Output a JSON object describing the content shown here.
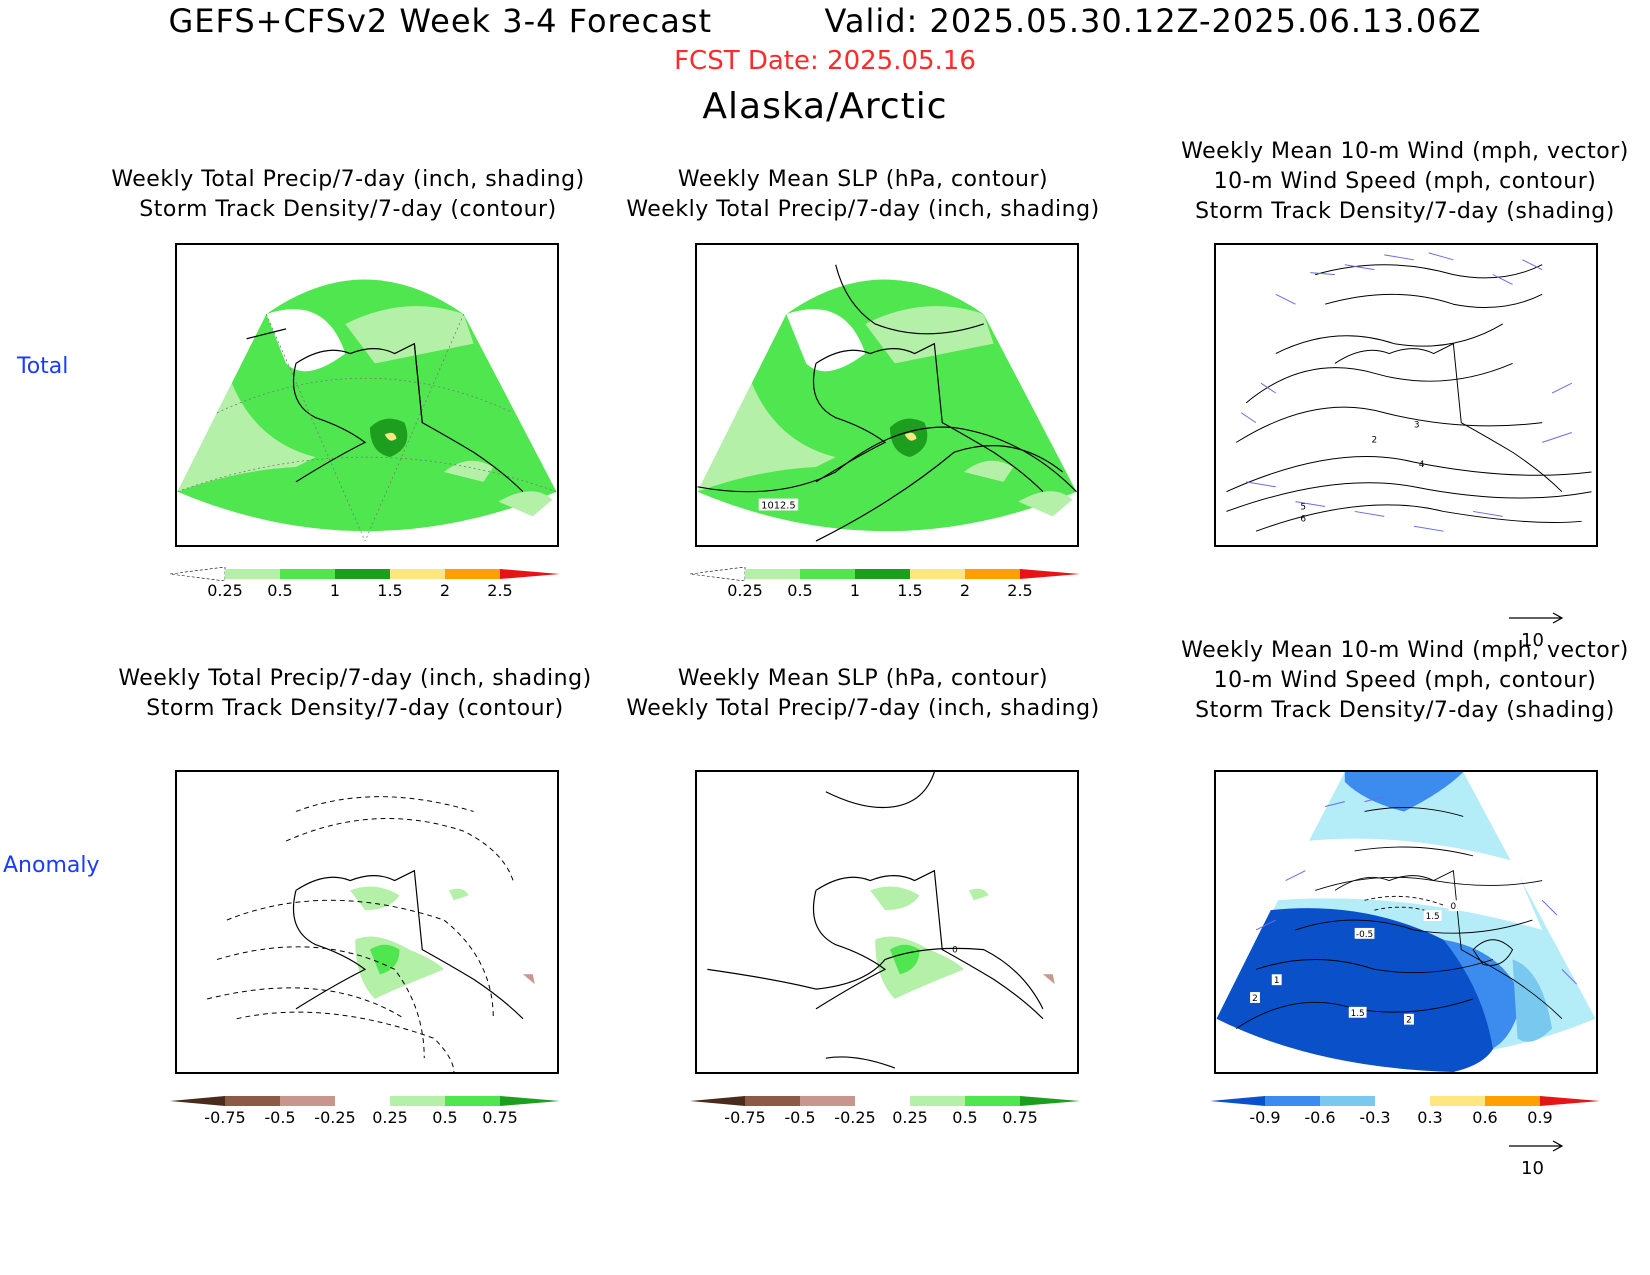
{
  "header": {
    "title": "GEFS+CFSv2 Week 3-4 Forecast",
    "valid": "Valid: 2025.05.30.12Z-2025.06.13.06Z",
    "fcst_date": "FCST Date: 2025.05.16",
    "region": "Alaska/Arctic"
  },
  "rows": {
    "total": "Total",
    "anomaly": "Anomaly"
  },
  "panels": {
    "col1": {
      "line1": "Weekly Total Precip/7-day (inch, shading)",
      "line2": "Storm Track Density/7-day (contour)"
    },
    "col2": {
      "line1": "Weekly Mean SLP (hPa, contour)",
      "line2": "Weekly Total Precip/7-day (inch, shading)"
    },
    "col3": {
      "line1": "Weekly Mean 10-m Wind (mph, vector)",
      "line2": "10-m Wind Speed (mph, contour)",
      "line3": "Storm Track Density/7-day (shading)"
    }
  },
  "map_labels": {
    "slp_total": "1012.5",
    "slp_anom": "0",
    "wind_total": [
      "2",
      "3",
      "4",
      "5",
      "6"
    ],
    "wind_anom": [
      "1",
      "2",
      "1.5",
      "2",
      "-0.5",
      "0",
      "1.5"
    ]
  },
  "colorbars": {
    "total_precip": {
      "ticks": [
        "0.25",
        "0.5",
        "1",
        "1.5",
        "2",
        "2.5"
      ],
      "colors": [
        "#ffffff",
        "#b4f0a8",
        "#50e650",
        "#1e9e1e",
        "#ffe680",
        "#ffa000",
        "#e61414"
      ]
    },
    "anom_precip": {
      "ticks": [
        "-0.75",
        "-0.5",
        "-0.25",
        "0.25",
        "0.5",
        "0.75"
      ],
      "colors": [
        "#4a2a1a",
        "#8c5a46",
        "#c8968c",
        "#e8c8bc",
        "#ffffff",
        "#b4f0a8",
        "#50e650",
        "#1e9e1e"
      ]
    },
    "anom_storm": {
      "ticks": [
        "-0.9",
        "-0.6",
        "-0.3",
        "0.3",
        "0.6",
        "0.9"
      ],
      "colors": [
        "#0a50c8",
        "#3c8cf0",
        "#78c8f0",
        "#b4ecf8",
        "#ffffff",
        "#ffe680",
        "#ffa000",
        "#e61414"
      ]
    }
  },
  "vector_ref": "10"
}
